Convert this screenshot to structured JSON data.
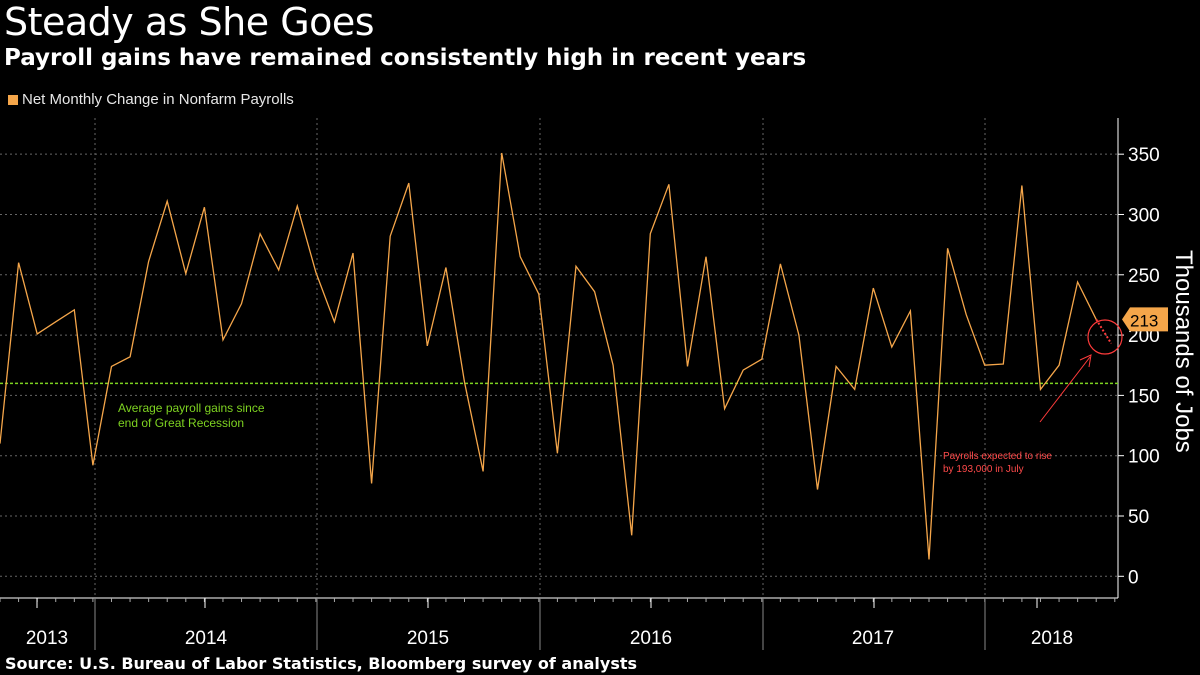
{
  "header": {
    "title": "Steady as She Goes",
    "subtitle": "Payroll gains have remained consistently high in recent years"
  },
  "source": "Source: U.S. Bureau of Labor Statistics, Bloomberg survey of analysts",
  "colors": {
    "series": "#f5a64a",
    "average": "#7ed321",
    "forecast": "#ff3b3b",
    "grid": "#666666",
    "background": "#000000"
  },
  "chart_data": {
    "type": "line",
    "title": "Steady as She Goes",
    "subtitle": "Payroll gains have remained consistently high in recent years",
    "legend": [
      "Net Monthly Change in Nonfarm Payrolls"
    ],
    "ylabel": "Thousands of Jobs",
    "xlabel": "",
    "ylim": [
      -18,
      380
    ],
    "yticks": [
      0,
      50,
      100,
      150,
      200,
      250,
      300,
      350
    ],
    "year_labels": [
      "2013",
      "2014",
      "2015",
      "2016",
      "2017",
      "2018"
    ],
    "series": [
      {
        "name": "Net Monthly Change in Nonfarm Payrolls",
        "start": "2012-12",
        "values": [
          110,
          260,
          201,
          211,
          221,
          92,
          174,
          182,
          261,
          311,
          251,
          306,
          196,
          226,
          284,
          254,
          307,
          252,
          211,
          268,
          77,
          282,
          326,
          191,
          256,
          161,
          87,
          351,
          265,
          234,
          102,
          257,
          236,
          175,
          34,
          284,
          325,
          174,
          265,
          139,
          171,
          180,
          259,
          200,
          72,
          174,
          155,
          239,
          190,
          220,
          14,
          272,
          217,
          175,
          176,
          324,
          155,
          175,
          244,
          213
        ]
      }
    ],
    "forecast": {
      "label": "213",
      "from": 213,
      "to": 193
    },
    "average_line": {
      "value": 160,
      "label_line1": "Average payroll gains since",
      "label_line2": "end of Great Recession"
    },
    "annotation": {
      "line1": "Payrolls expected to rise",
      "line2": "by 193,000 in July"
    }
  }
}
